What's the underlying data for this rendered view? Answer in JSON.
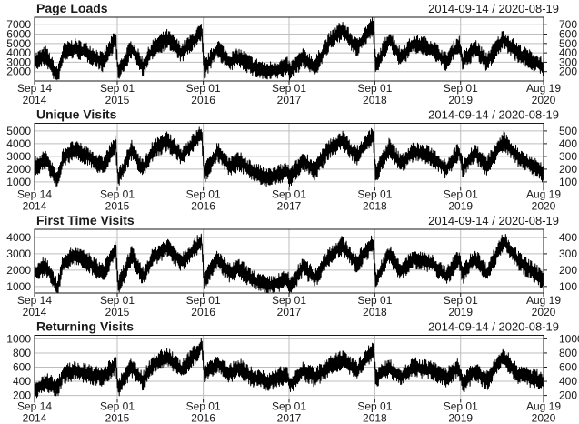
{
  "chart_data": [
    {
      "type": "line",
      "title": "Page Loads",
      "date_range": "2014-09-14 / 2020-08-19",
      "x_start": "2014-09-14",
      "x_end": "2020-08-19",
      "x_ticks": [
        {
          "date": "2014-09-14",
          "line1": "Sep 14",
          "line2": "2014"
        },
        {
          "date": "2015-09-01",
          "line1": "Sep 01",
          "line2": "2015"
        },
        {
          "date": "2016-09-01",
          "line1": "Sep 01",
          "line2": "2016"
        },
        {
          "date": "2017-09-01",
          "line1": "Sep 01",
          "line2": "2017"
        },
        {
          "date": "2018-09-01",
          "line1": "Sep 01",
          "line2": "2018"
        },
        {
          "date": "2019-09-01",
          "line1": "Sep 01",
          "line2": "2019"
        },
        {
          "date": "2020-08-19",
          "line1": "Aug 19",
          "line2": "2020"
        }
      ],
      "y_ticks": [
        2000,
        3000,
        4000,
        5000,
        6000,
        7000
      ],
      "left_tick_labels": [
        "2000",
        "3000",
        "4000",
        "5000",
        "6000",
        "7000"
      ],
      "right_tick_labels": [
        "200",
        "300",
        "400",
        "500",
        "600",
        "700"
      ],
      "ylim": [
        1000,
        7800
      ],
      "grid": true,
      "color": "#000000",
      "series": [
        {
          "values": [
            [
              "2014-09-14",
              3000
            ],
            [
              "2014-11-01",
              3700
            ],
            [
              "2014-12-20",
              1500
            ],
            [
              "2015-01-15",
              4000
            ],
            [
              "2015-03-01",
              4500
            ],
            [
              "2015-05-01",
              4000
            ],
            [
              "2015-07-01",
              3000
            ],
            [
              "2015-08-25",
              5500
            ],
            [
              "2015-09-05",
              1800
            ],
            [
              "2015-11-01",
              4500
            ],
            [
              "2015-12-20",
              2500
            ],
            [
              "2016-02-01",
              4500
            ],
            [
              "2016-04-01",
              5500
            ],
            [
              "2016-06-01",
              4000
            ],
            [
              "2016-08-25",
              6200
            ],
            [
              "2016-09-05",
              2200
            ],
            [
              "2016-11-01",
              4500
            ],
            [
              "2016-12-20",
              3000
            ],
            [
              "2017-02-01",
              3500
            ],
            [
              "2017-04-01",
              2500
            ],
            [
              "2017-06-01",
              2000
            ],
            [
              "2017-08-25",
              2500
            ],
            [
              "2017-09-05",
              2000
            ],
            [
              "2017-11-01",
              3500
            ],
            [
              "2017-12-20",
              2500
            ],
            [
              "2018-02-15",
              5000
            ],
            [
              "2018-04-15",
              6500
            ],
            [
              "2018-06-15",
              4500
            ],
            [
              "2018-08-25",
              7000
            ],
            [
              "2018-09-05",
              2500
            ],
            [
              "2018-11-01",
              5500
            ],
            [
              "2018-12-20",
              3500
            ],
            [
              "2019-02-15",
              5000
            ],
            [
              "2019-05-01",
              4500
            ],
            [
              "2019-07-01",
              3000
            ],
            [
              "2019-08-25",
              5000
            ],
            [
              "2019-09-10",
              3000
            ],
            [
              "2019-11-01",
              4500
            ],
            [
              "2019-12-20",
              3000
            ],
            [
              "2020-03-01",
              5500
            ],
            [
              "2020-05-01",
              4000
            ],
            [
              "2020-08-19",
              2500
            ]
          ]
        }
      ]
    },
    {
      "type": "line",
      "title": "Unique Visits",
      "date_range": "2014-09-14 / 2020-08-19",
      "x_start": "2014-09-14",
      "x_end": "2020-08-19",
      "x_ticks": [
        {
          "date": "2014-09-14",
          "line1": "Sep 14",
          "line2": "2014"
        },
        {
          "date": "2015-09-01",
          "line1": "Sep 01",
          "line2": "2015"
        },
        {
          "date": "2016-09-01",
          "line1": "Sep 01",
          "line2": "2016"
        },
        {
          "date": "2017-09-01",
          "line1": "Sep 01",
          "line2": "2017"
        },
        {
          "date": "2018-09-01",
          "line1": "Sep 01",
          "line2": "2018"
        },
        {
          "date": "2019-09-01",
          "line1": "Sep 01",
          "line2": "2019"
        },
        {
          "date": "2020-08-19",
          "line1": "Aug 19",
          "line2": "2020"
        }
      ],
      "y_ticks": [
        1000,
        2000,
        3000,
        4000,
        5000
      ],
      "left_tick_labels": [
        "1000",
        "2000",
        "3000",
        "4000",
        "5000"
      ],
      "right_tick_labels": [
        "100",
        "200",
        "300",
        "400",
        "500"
      ],
      "ylim": [
        600,
        5600
      ],
      "grid": true,
      "color": "#000000",
      "series": [
        {
          "values": [
            [
              "2014-09-14",
              2200
            ],
            [
              "2014-11-01",
              2800
            ],
            [
              "2014-12-20",
              1000
            ],
            [
              "2015-01-15",
              3000
            ],
            [
              "2015-03-01",
              3500
            ],
            [
              "2015-05-01",
              3000
            ],
            [
              "2015-07-01",
              2200
            ],
            [
              "2015-08-25",
              4000
            ],
            [
              "2015-09-05",
              1200
            ],
            [
              "2015-11-01",
              3500
            ],
            [
              "2015-12-20",
              2000
            ],
            [
              "2016-02-01",
              3500
            ],
            [
              "2016-04-01",
              4200
            ],
            [
              "2016-06-01",
              3000
            ],
            [
              "2016-08-25",
              4800
            ],
            [
              "2016-09-05",
              1600
            ],
            [
              "2016-11-01",
              3400
            ],
            [
              "2016-12-20",
              2200
            ],
            [
              "2017-02-01",
              2600
            ],
            [
              "2017-04-01",
              1800
            ],
            [
              "2017-06-01",
              1300
            ],
            [
              "2017-08-25",
              1800
            ],
            [
              "2017-09-05",
              1300
            ],
            [
              "2017-11-01",
              2700
            ],
            [
              "2017-12-20",
              1900
            ],
            [
              "2018-02-15",
              3500
            ],
            [
              "2018-04-15",
              4300
            ],
            [
              "2018-06-15",
              3000
            ],
            [
              "2018-08-25",
              4700
            ],
            [
              "2018-09-05",
              1600
            ],
            [
              "2018-11-01",
              3700
            ],
            [
              "2018-12-20",
              2400
            ],
            [
              "2019-02-15",
              3400
            ],
            [
              "2019-05-01",
              3000
            ],
            [
              "2019-07-01",
              2000
            ],
            [
              "2019-08-25",
              3400
            ],
            [
              "2019-09-10",
              2100
            ],
            [
              "2019-11-01",
              3300
            ],
            [
              "2019-12-20",
              2200
            ],
            [
              "2020-03-01",
              4200
            ],
            [
              "2020-05-01",
              3000
            ],
            [
              "2020-08-19",
              1700
            ]
          ]
        }
      ]
    },
    {
      "type": "line",
      "title": "First Time Visits",
      "date_range": "2014-09-14 / 2020-08-19",
      "x_start": "2014-09-14",
      "x_end": "2020-08-19",
      "x_ticks": [
        {
          "date": "2014-09-14",
          "line1": "Sep 14",
          "line2": "2014"
        },
        {
          "date": "2015-09-01",
          "line1": "Sep 01",
          "line2": "2015"
        },
        {
          "date": "2016-09-01",
          "line1": "Sep 01",
          "line2": "2016"
        },
        {
          "date": "2017-09-01",
          "line1": "Sep 01",
          "line2": "2017"
        },
        {
          "date": "2018-09-01",
          "line1": "Sep 01",
          "line2": "2018"
        },
        {
          "date": "2019-09-01",
          "line1": "Sep 01",
          "line2": "2019"
        },
        {
          "date": "2020-08-19",
          "line1": "Aug 19",
          "line2": "2020"
        }
      ],
      "y_ticks": [
        1000,
        2000,
        3000,
        4000
      ],
      "left_tick_labels": [
        "1000",
        "2000",
        "3000",
        "4000"
      ],
      "right_tick_labels": [
        "100",
        "200",
        "300",
        "400"
      ],
      "ylim": [
        600,
        4500
      ],
      "grid": true,
      "color": "#000000",
      "series": [
        {
          "values": [
            [
              "2014-09-14",
              1800
            ],
            [
              "2014-11-01",
              2300
            ],
            [
              "2014-12-20",
              900
            ],
            [
              "2015-01-15",
              2500
            ],
            [
              "2015-03-01",
              2900
            ],
            [
              "2015-05-01",
              2500
            ],
            [
              "2015-07-01",
              1800
            ],
            [
              "2015-08-25",
              3300
            ],
            [
              "2015-09-05",
              1000
            ],
            [
              "2015-11-01",
              2900
            ],
            [
              "2015-12-20",
              1600
            ],
            [
              "2016-02-01",
              2800
            ],
            [
              "2016-04-01",
              3400
            ],
            [
              "2016-06-01",
              2500
            ],
            [
              "2016-08-25",
              3800
            ],
            [
              "2016-09-05",
              1300
            ],
            [
              "2016-11-01",
              2700
            ],
            [
              "2016-12-20",
              1800
            ],
            [
              "2017-02-01",
              2100
            ],
            [
              "2017-04-01",
              1400
            ],
            [
              "2017-06-01",
              1000
            ],
            [
              "2017-08-25",
              1400
            ],
            [
              "2017-09-05",
              1000
            ],
            [
              "2017-11-01",
              2200
            ],
            [
              "2017-12-20",
              1500
            ],
            [
              "2018-02-15",
              2800
            ],
            [
              "2018-04-15",
              3500
            ],
            [
              "2018-06-15",
              2400
            ],
            [
              "2018-08-25",
              3700
            ],
            [
              "2018-09-05",
              1300
            ],
            [
              "2018-11-01",
              3000
            ],
            [
              "2018-12-20",
              1900
            ],
            [
              "2019-02-15",
              2700
            ],
            [
              "2019-05-01",
              2400
            ],
            [
              "2019-07-01",
              1600
            ],
            [
              "2019-08-25",
              2700
            ],
            [
              "2019-09-10",
              1700
            ],
            [
              "2019-11-01",
              2800
            ],
            [
              "2019-12-20",
              1800
            ],
            [
              "2020-03-01",
              3800
            ],
            [
              "2020-05-01",
              2600
            ],
            [
              "2020-08-19",
              1400
            ]
          ]
        }
      ]
    },
    {
      "type": "line",
      "title": "Returning Visits",
      "date_range": "2014-09-14 / 2020-08-19",
      "x_start": "2014-09-14",
      "x_end": "2020-08-19",
      "x_ticks": [
        {
          "date": "2014-09-14",
          "line1": "Sep 14",
          "line2": "2014"
        },
        {
          "date": "2015-09-01",
          "line1": "Sep 01",
          "line2": "2015"
        },
        {
          "date": "2016-09-01",
          "line1": "Sep 01",
          "line2": "2016"
        },
        {
          "date": "2017-09-01",
          "line1": "Sep 01",
          "line2": "2017"
        },
        {
          "date": "2018-09-01",
          "line1": "Sep 01",
          "line2": "2018"
        },
        {
          "date": "2019-09-01",
          "line1": "Sep 01",
          "line2": "2019"
        },
        {
          "date": "2020-08-19",
          "line1": "Aug 19",
          "line2": "2020"
        }
      ],
      "y_ticks": [
        200,
        400,
        600,
        800,
        1000
      ],
      "left_tick_labels": [
        "200",
        "400",
        "600",
        "800",
        "1000"
      ],
      "right_tick_labels": [
        "200",
        "400",
        "600",
        "800",
        "1000"
      ],
      "ylim": [
        150,
        1050
      ],
      "grid": true,
      "color": "#000000",
      "series": [
        {
          "values": [
            [
              "2014-09-14",
              250
            ],
            [
              "2014-11-01",
              400
            ],
            [
              "2014-12-20",
              300
            ],
            [
              "2015-01-15",
              500
            ],
            [
              "2015-03-01",
              550
            ],
            [
              "2015-05-01",
              500
            ],
            [
              "2015-07-01",
              450
            ],
            [
              "2015-08-25",
              650
            ],
            [
              "2015-09-05",
              300
            ],
            [
              "2015-11-01",
              600
            ],
            [
              "2015-12-20",
              400
            ],
            [
              "2016-02-01",
              650
            ],
            [
              "2016-04-01",
              750
            ],
            [
              "2016-06-01",
              550
            ],
            [
              "2016-08-25",
              900
            ],
            [
              "2016-09-05",
              500
            ],
            [
              "2016-11-01",
              650
            ],
            [
              "2016-12-20",
              500
            ],
            [
              "2017-02-01",
              600
            ],
            [
              "2017-04-01",
              450
            ],
            [
              "2017-06-01",
              400
            ],
            [
              "2017-08-25",
              500
            ],
            [
              "2017-09-05",
              350
            ],
            [
              "2017-11-01",
              550
            ],
            [
              "2017-12-20",
              450
            ],
            [
              "2018-02-15",
              600
            ],
            [
              "2018-04-15",
              700
            ],
            [
              "2018-06-15",
              550
            ],
            [
              "2018-08-25",
              850
            ],
            [
              "2018-09-05",
              450
            ],
            [
              "2018-11-01",
              600
            ],
            [
              "2018-12-20",
              450
            ],
            [
              "2019-02-15",
              600
            ],
            [
              "2019-05-01",
              550
            ],
            [
              "2019-07-01",
              450
            ],
            [
              "2019-08-25",
              600
            ],
            [
              "2019-09-10",
              350
            ],
            [
              "2019-11-01",
              550
            ],
            [
              "2019-12-20",
              400
            ],
            [
              "2020-03-01",
              750
            ],
            [
              "2020-05-01",
              500
            ],
            [
              "2020-08-19",
              400
            ]
          ]
        }
      ]
    }
  ]
}
